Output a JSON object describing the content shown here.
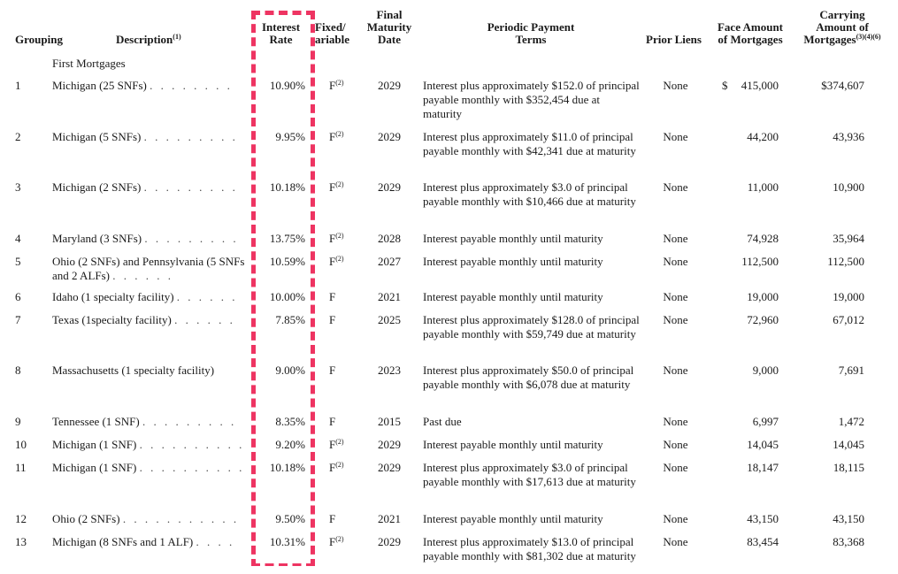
{
  "headers": {
    "grouping": "Grouping",
    "description": "Description",
    "description_sup": "(1)",
    "interest_rate_l1": "Interest",
    "interest_rate_l2": "Rate",
    "fixed_l1": "Fixed/",
    "fixed_l2": "ariable",
    "maturity_l1": "Final",
    "maturity_l2": "Maturity",
    "maturity_l3": "Date",
    "terms_l1": "Periodic Payment",
    "terms_l2": "Terms",
    "prior_liens": "Prior Liens",
    "face_l1": "Face Amount",
    "face_l2": "of Mortgages",
    "carrying_l1": "Carrying",
    "carrying_l2": "Amount of",
    "carrying_l3": "Mortgages",
    "carrying_sup": "(3)(4)(6)"
  },
  "section_label": "First Mortgages",
  "rows": [
    {
      "group": "1",
      "desc": "Michigan (25 SNFs)",
      "dots": ". . . . . . . .",
      "rate": "10.90%",
      "fv": "F",
      "fv_sup": "(2)",
      "year": "2029",
      "terms": "Interest plus approximately $152.0 of principal payable monthly with $352,454 due at maturity",
      "liens": "None",
      "face_sign": "$",
      "face": "415,000",
      "carrying": "$374,607"
    },
    {
      "group": "2",
      "desc": "Michigan (5 SNFs)",
      "dots": ". . . . . . . . .",
      "rate": "9.95%",
      "fv": "F",
      "fv_sup": "(2)",
      "year": "2029",
      "terms": "Interest plus approximately $11.0 of principal payable monthly with $42,341 due at maturity",
      "liens": "None",
      "face_sign": "",
      "face": "44,200",
      "carrying": "43,936"
    },
    {
      "group": "3",
      "desc": "Michigan (2 SNFs)",
      "dots": ". . . . . . . . .",
      "rate": "10.18%",
      "fv": "F",
      "fv_sup": "(2)",
      "year": "2029",
      "terms": "Interest plus approximately $3.0 of principal payable monthly with $10,466 due at maturity",
      "liens": "None",
      "face_sign": "",
      "face": "11,000",
      "carrying": "10,900"
    },
    {
      "group": "4",
      "desc": "Maryland (3 SNFs)",
      "dots": ". . . . . . . . .",
      "rate": "13.75%",
      "fv": "F",
      "fv_sup": "(2)",
      "year": "2028",
      "terms": "Interest payable monthly until maturity",
      "liens": "None",
      "face_sign": "",
      "face": "74,928",
      "carrying": "35,964"
    },
    {
      "group": "5",
      "desc": "Ohio (2 SNFs) and Pennsylvania (5 SNFs and 2 ALFs)",
      "dots": ". . . . . .",
      "rate": "10.59%",
      "fv": "F",
      "fv_sup": "(2)",
      "year": "2027",
      "terms": "Interest payable monthly until maturity",
      "liens": "None",
      "face_sign": "",
      "face": "112,500",
      "carrying": "112,500"
    },
    {
      "group": "6",
      "desc": "Idaho (1 specialty facility)",
      "dots": ". . . . . .",
      "rate": "10.00%",
      "fv": "F",
      "fv_sup": "",
      "year": "2021",
      "terms": "Interest payable monthly until maturity",
      "liens": "None",
      "face_sign": "",
      "face": "19,000",
      "carrying": "19,000"
    },
    {
      "group": "7",
      "desc": "Texas (1specialty facility)",
      "dots": ". . . . . .",
      "rate": "7.85%",
      "fv": "F",
      "fv_sup": "",
      "year": "2025",
      "terms": "Interest plus approximately $128.0 of principal payable monthly with $59,749 due at maturity",
      "liens": "None",
      "face_sign": "",
      "face": "72,960",
      "carrying": "67,012"
    },
    {
      "group": "8",
      "desc": "Massachusetts (1 specialty facility)",
      "dots": "",
      "rate": "9.00%",
      "fv": "F",
      "fv_sup": "",
      "year": "2023",
      "terms": "Interest plus approximately $50.0 of principal payable monthly with $6,078 due at maturity",
      "liens": "None",
      "face_sign": "",
      "face": "9,000",
      "carrying": "7,691"
    },
    {
      "group": "9",
      "desc": "Tennessee (1 SNF)",
      "dots": ". . . . . . . . .",
      "rate": "8.35%",
      "fv": "F",
      "fv_sup": "",
      "year": "2015",
      "terms": "Past due",
      "liens": "None",
      "face_sign": "",
      "face": "6,997",
      "carrying": "1,472"
    },
    {
      "group": "10",
      "desc": "Michigan (1 SNF)",
      "dots": ". . . . . . . . . .",
      "rate": "9.20%",
      "fv": "F",
      "fv_sup": "(2)",
      "year": "2029",
      "terms": "Interest payable monthly until maturity",
      "liens": "None",
      "face_sign": "",
      "face": "14,045",
      "carrying": "14,045"
    },
    {
      "group": "11",
      "desc": "Michigan (1 SNF)",
      "dots": ". . . . . . . . . .",
      "rate": "10.18%",
      "fv": "F",
      "fv_sup": "(2)",
      "year": "2029",
      "terms": "Interest plus approximately $3.0 of principal payable monthly with $17,613 due at maturity",
      "liens": "None",
      "face_sign": "",
      "face": "18,147",
      "carrying": "18,115"
    },
    {
      "group": "12",
      "desc": "Ohio (2 SNFs)",
      "dots": ". . . . . . . . . . .",
      "rate": "9.50%",
      "fv": "F",
      "fv_sup": "",
      "year": "2021",
      "terms": "Interest payable monthly until maturity",
      "liens": "None",
      "face_sign": "",
      "face": "43,150",
      "carrying": "43,150"
    },
    {
      "group": "13",
      "desc": "Michigan (8 SNFs and 1 ALF)",
      "dots": ". . . .",
      "rate": "10.31%",
      "fv": "F",
      "fv_sup": "(2)",
      "year": "2029",
      "terms": "Interest plus approximately $13.0 of principal payable monthly with $81,302 due at maturity",
      "liens": "None",
      "face_sign": "",
      "face": "83,454",
      "carrying": "83,368"
    }
  ],
  "highlight_color": "#ee3462"
}
